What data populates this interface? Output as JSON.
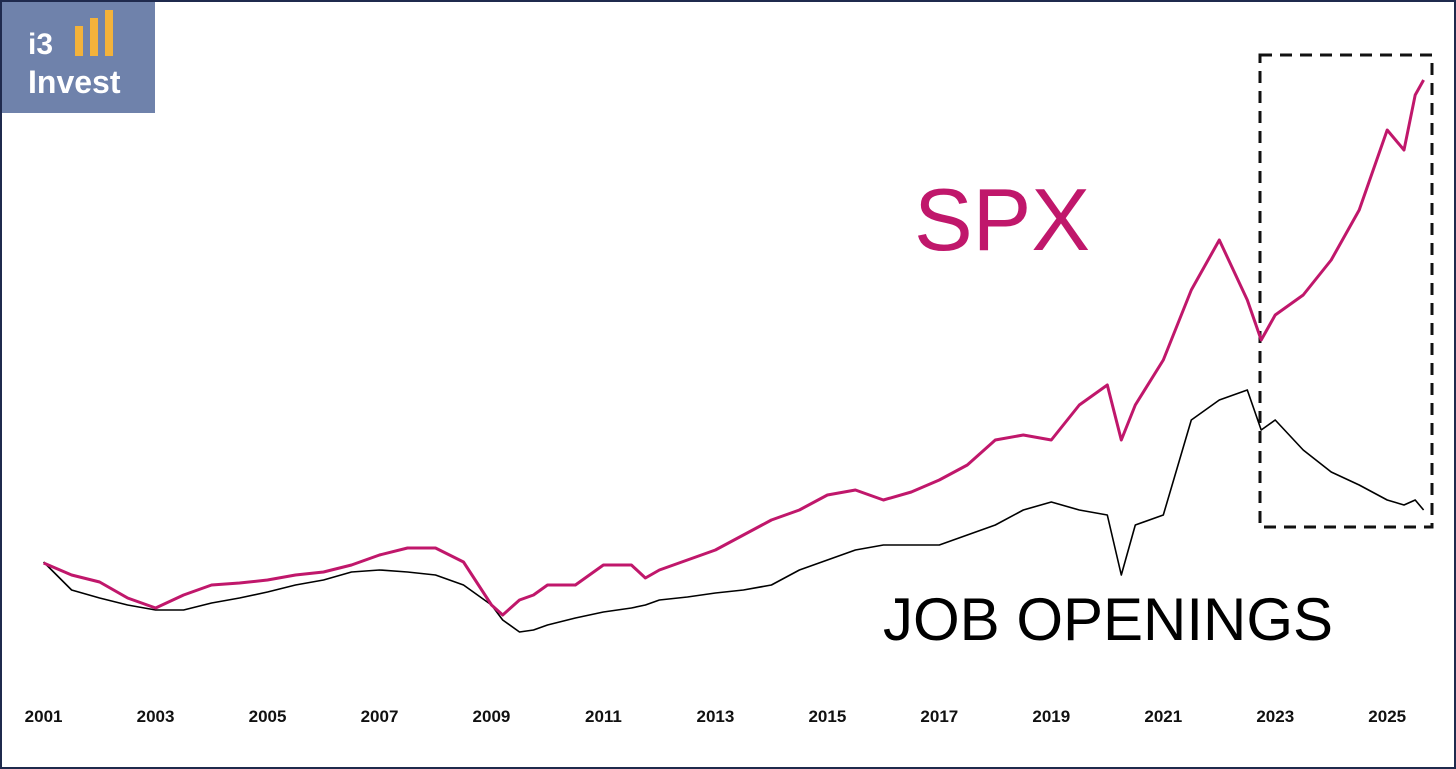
{
  "logo": {
    "line1": "i3",
    "line2": "Invest"
  },
  "chart_data": {
    "type": "line",
    "x": [
      2001,
      2001.5,
      2002,
      2002.5,
      2003,
      2003.5,
      2004,
      2004.5,
      2005,
      2005.5,
      2006,
      2006.5,
      2007,
      2007.5,
      2008,
      2008.5,
      2009,
      2009.2,
      2009.5,
      2009.75,
      2010,
      2010.5,
      2011,
      2011.5,
      2011.75,
      2012,
      2012.5,
      2013,
      2013.5,
      2014,
      2014.5,
      2015,
      2015.5,
      2016,
      2016.5,
      2017,
      2017.5,
      2018,
      2018.5,
      2019,
      2019.5,
      2020,
      2020.25,
      2020.5,
      2021,
      2021.5,
      2022,
      2022.5,
      2022.75,
      2023,
      2023.5,
      2024,
      2024.5,
      2025,
      2025.3,
      2025.5,
      2025.65
    ],
    "series": [
      {
        "name": "SPX",
        "color": "#c0176b",
        "values": [
          27.4,
          25,
          23.6,
          20.4,
          18.4,
          21,
          23,
          23.4,
          24,
          25,
          25.6,
          27,
          29,
          30.4,
          30.4,
          27.6,
          19,
          17,
          20,
          21,
          23,
          23,
          27,
          27,
          24.4,
          26,
          28,
          30,
          33,
          36,
          38,
          41,
          42,
          40,
          41.6,
          44,
          47,
          52,
          53,
          52,
          59,
          63,
          52,
          59,
          68,
          82,
          92,
          80,
          72,
          77,
          81,
          88,
          98,
          114,
          110,
          121,
          124
        ]
      },
      {
        "name": "JOB OPENINGS",
        "color": "#000000",
        "values": [
          27.6,
          22,
          20.4,
          19,
          18,
          18,
          19.4,
          20.4,
          21.6,
          23,
          24,
          25.6,
          26,
          25.6,
          25,
          23,
          19,
          16,
          13.6,
          14,
          15,
          16.4,
          17.6,
          18.4,
          19,
          20,
          20.6,
          21.4,
          22,
          23,
          26,
          28,
          30,
          31,
          31,
          31,
          33,
          35,
          38,
          39.6,
          38,
          37,
          25,
          35,
          37,
          56,
          60,
          62,
          54,
          56,
          50,
          45.6,
          43,
          40,
          39,
          40,
          38
        ]
      }
    ],
    "xlim": [
      2000.9,
      2025.8
    ],
    "xticks": [
      2001,
      2003,
      2005,
      2007,
      2009,
      2011,
      2013,
      2015,
      2017,
      2019,
      2021,
      2023,
      2025
    ],
    "ylim": [
      0,
      130
    ]
  }
}
